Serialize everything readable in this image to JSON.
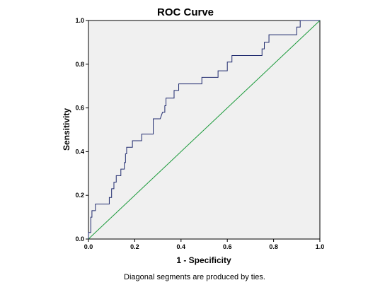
{
  "chart_data": {
    "type": "line",
    "title": "ROC Curve",
    "xlabel": "1 - Specificity",
    "ylabel": "Sensitivity",
    "footnote": "Diagonal segments are produced by ties.",
    "xlim": [
      0,
      1
    ],
    "ylim": [
      0,
      1
    ],
    "x_ticks": [
      "0.0",
      "0.2",
      "0.4",
      "0.6",
      "0.8",
      "1.0"
    ],
    "y_ticks": [
      "0.0",
      "0.2",
      "0.4",
      "0.6",
      "0.8",
      "1.0"
    ],
    "grid": false,
    "legend": "none",
    "colors": {
      "plot_background": "#f0f0f0",
      "roc_line": "#1f2a6e",
      "reference_line": "#1a9a3a"
    },
    "series": [
      {
        "values": [
          [
            0.0,
            0.0
          ],
          [
            0.0,
            0.03
          ],
          [
            0.01,
            0.03
          ],
          [
            0.01,
            0.09
          ],
          [
            0.01,
            0.1
          ],
          [
            0.015,
            0.1
          ],
          [
            0.015,
            0.13
          ],
          [
            0.03,
            0.13
          ],
          [
            0.03,
            0.16
          ],
          [
            0.09,
            0.16
          ],
          [
            0.09,
            0.19
          ],
          [
            0.1,
            0.19
          ],
          [
            0.1,
            0.23
          ],
          [
            0.11,
            0.23
          ],
          [
            0.11,
            0.26
          ],
          [
            0.12,
            0.26
          ],
          [
            0.12,
            0.29
          ],
          [
            0.14,
            0.29
          ],
          [
            0.14,
            0.32
          ],
          [
            0.155,
            0.32
          ],
          [
            0.155,
            0.35
          ],
          [
            0.16,
            0.35
          ],
          [
            0.16,
            0.39
          ],
          [
            0.165,
            0.39
          ],
          [
            0.165,
            0.42
          ],
          [
            0.19,
            0.42
          ],
          [
            0.19,
            0.45
          ],
          [
            0.23,
            0.45
          ],
          [
            0.23,
            0.48
          ],
          [
            0.28,
            0.48
          ],
          [
            0.28,
            0.55
          ],
          [
            0.31,
            0.55
          ],
          [
            0.32,
            0.58
          ],
          [
            0.33,
            0.58
          ],
          [
            0.33,
            0.61
          ],
          [
            0.335,
            0.61
          ],
          [
            0.335,
            0.645
          ],
          [
            0.37,
            0.645
          ],
          [
            0.37,
            0.68
          ],
          [
            0.39,
            0.68
          ],
          [
            0.39,
            0.71
          ],
          [
            0.49,
            0.71
          ],
          [
            0.49,
            0.74
          ],
          [
            0.56,
            0.74
          ],
          [
            0.56,
            0.77
          ],
          [
            0.6,
            0.77
          ],
          [
            0.6,
            0.81
          ],
          [
            0.62,
            0.81
          ],
          [
            0.62,
            0.84
          ],
          [
            0.75,
            0.84
          ],
          [
            0.75,
            0.87
          ],
          [
            0.76,
            0.87
          ],
          [
            0.76,
            0.9
          ],
          [
            0.78,
            0.9
          ],
          [
            0.78,
            0.935
          ],
          [
            0.9,
            0.935
          ],
          [
            0.9,
            0.97
          ],
          [
            0.915,
            0.97
          ],
          [
            0.915,
            1.0
          ],
          [
            1.0,
            1.0
          ]
        ]
      },
      {
        "values": [
          [
            0,
            0
          ],
          [
            1,
            1
          ]
        ]
      }
    ]
  }
}
